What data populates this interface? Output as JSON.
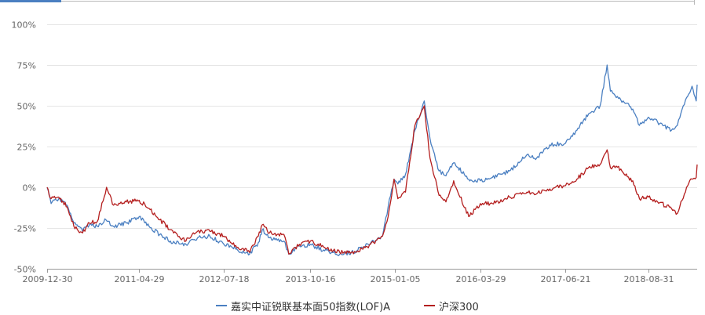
{
  "colors": {
    "fund": "#4a7fc1",
    "index": "#b41e1e",
    "grid": "#e6e6e6",
    "axis": "#999999"
  },
  "chart_data": {
    "type": "line",
    "ylim": [
      -50,
      100
    ],
    "yticks": [
      -50,
      -25,
      0,
      25,
      50,
      75,
      100
    ],
    "ytick_labels": [
      "-50%",
      "-25%",
      "0%",
      "25%",
      "50%",
      "75%",
      "100%"
    ],
    "xlim": [
      "2009-12-30",
      "2019-05-15"
    ],
    "xticks": [
      "2009-12-30",
      "2011-04-29",
      "2012-07-18",
      "2013-10-16",
      "2015-01-05",
      "2016-03-29",
      "2017-06-21",
      "2018-08-31"
    ],
    "xtick_labels": [
      "2009-12-30",
      "2011-04-29",
      "2012-07-18",
      "2013-10-16",
      "2015-01-05",
      "2016-03-29",
      "2017-06-21",
      "2018-08-31"
    ],
    "legend_position": "bottom-center",
    "grid": "horizontal",
    "series": [
      {
        "name": "嘉实中证锐联基本面50指数(LOF)A",
        "points": [
          [
            "2009-12-30",
            0
          ],
          [
            "2010-01-20",
            -10
          ],
          [
            "2010-03-01",
            -7
          ],
          [
            "2010-04-15",
            -11
          ],
          [
            "2010-05-20",
            -22
          ],
          [
            "2010-07-05",
            -27
          ],
          [
            "2010-08-10",
            -23
          ],
          [
            "2010-09-20",
            -24
          ],
          [
            "2010-11-05",
            -20
          ],
          [
            "2010-12-15",
            -24
          ],
          [
            "2011-02-20",
            -22
          ],
          [
            "2011-04-29",
            -18
          ],
          [
            "2011-06-20",
            -24
          ],
          [
            "2011-08-15",
            -29
          ],
          [
            "2011-10-10",
            -33
          ],
          [
            "2011-12-31",
            -35
          ],
          [
            "2012-03-01",
            -31
          ],
          [
            "2012-05-05",
            -30
          ],
          [
            "2012-07-18",
            -35
          ],
          [
            "2012-09-01",
            -37
          ],
          [
            "2012-11-30",
            -41
          ],
          [
            "2013-01-15",
            -34
          ],
          [
            "2013-02-05",
            -26
          ],
          [
            "2013-03-15",
            -31
          ],
          [
            "2013-05-30",
            -33
          ],
          [
            "2013-06-25",
            -41
          ],
          [
            "2013-08-20",
            -36
          ],
          [
            "2013-10-16",
            -35
          ],
          [
            "2013-12-31",
            -39
          ],
          [
            "2014-03-20",
            -41
          ],
          [
            "2014-05-20",
            -40
          ],
          [
            "2014-07-20",
            -37
          ],
          [
            "2014-09-15",
            -33
          ],
          [
            "2014-10-31",
            -30
          ],
          [
            "2014-11-30",
            -12
          ],
          [
            "2014-12-31",
            5
          ],
          [
            "2015-01-20",
            2
          ],
          [
            "2015-03-01",
            8
          ],
          [
            "2015-04-20",
            35
          ],
          [
            "2015-06-08",
            53
          ],
          [
            "2015-07-08",
            30
          ],
          [
            "2015-08-25",
            10
          ],
          [
            "2015-09-30",
            7
          ],
          [
            "2015-11-10",
            15
          ],
          [
            "2016-01-28",
            5
          ],
          [
            "2016-03-29",
            4
          ],
          [
            "2016-06-01",
            6
          ],
          [
            "2016-08-30",
            10
          ],
          [
            "2016-11-30",
            20
          ],
          [
            "2017-01-20",
            18
          ],
          [
            "2017-03-30",
            26
          ],
          [
            "2017-06-21",
            27
          ],
          [
            "2017-08-20",
            35
          ],
          [
            "2017-10-20",
            45
          ],
          [
            "2017-12-20",
            50
          ],
          [
            "2018-01-26",
            75
          ],
          [
            "2018-02-12",
            59
          ],
          [
            "2018-03-15",
            55
          ],
          [
            "2018-04-20",
            53
          ],
          [
            "2018-06-10",
            48
          ],
          [
            "2018-07-15",
            38
          ],
          [
            "2018-08-31",
            43
          ],
          [
            "2018-10-19",
            40
          ],
          [
            "2018-12-31",
            35
          ],
          [
            "2019-01-31",
            38
          ],
          [
            "2019-02-25",
            48
          ],
          [
            "2019-03-20",
            55
          ],
          [
            "2019-04-18",
            62
          ],
          [
            "2019-05-10",
            53
          ],
          [
            "2019-05-15",
            63
          ]
        ]
      },
      {
        "name": "沪深300",
        "points": [
          [
            "2009-12-30",
            0
          ],
          [
            "2010-01-20",
            -7
          ],
          [
            "2010-03-01",
            -6
          ],
          [
            "2010-04-15",
            -12
          ],
          [
            "2010-05-20",
            -24
          ],
          [
            "2010-07-05",
            -28
          ],
          [
            "2010-08-10",
            -22
          ],
          [
            "2010-09-20",
            -21
          ],
          [
            "2010-11-08",
            0
          ],
          [
            "2010-12-15",
            -11
          ],
          [
            "2011-02-20",
            -9
          ],
          [
            "2011-04-29",
            -8
          ],
          [
            "2011-06-20",
            -13
          ],
          [
            "2011-08-15",
            -20
          ],
          [
            "2011-10-10",
            -26
          ],
          [
            "2011-12-31",
            -33
          ],
          [
            "2012-03-01",
            -27
          ],
          [
            "2012-05-05",
            -27
          ],
          [
            "2012-07-18",
            -30
          ],
          [
            "2012-09-01",
            -35
          ],
          [
            "2012-11-30",
            -40
          ],
          [
            "2013-01-15",
            -30
          ],
          [
            "2013-02-05",
            -23
          ],
          [
            "2013-03-15",
            -28
          ],
          [
            "2013-05-30",
            -29
          ],
          [
            "2013-06-25",
            -41
          ],
          [
            "2013-08-20",
            -35
          ],
          [
            "2013-10-16",
            -33
          ],
          [
            "2013-12-31",
            -37
          ],
          [
            "2014-03-20",
            -40
          ],
          [
            "2014-05-20",
            -40
          ],
          [
            "2014-07-20",
            -38
          ],
          [
            "2014-09-15",
            -34
          ],
          [
            "2014-10-31",
            -30
          ],
          [
            "2014-11-30",
            -18
          ],
          [
            "2014-12-31",
            5
          ],
          [
            "2015-01-20",
            -7
          ],
          [
            "2015-03-01",
            -3
          ],
          [
            "2015-04-20",
            38
          ],
          [
            "2015-06-08",
            50
          ],
          [
            "2015-07-08",
            18
          ],
          [
            "2015-08-25",
            -5
          ],
          [
            "2015-09-30",
            -9
          ],
          [
            "2015-11-10",
            4
          ],
          [
            "2016-01-28",
            -18
          ],
          [
            "2016-03-29",
            -10
          ],
          [
            "2016-06-01",
            -10
          ],
          [
            "2016-08-30",
            -6
          ],
          [
            "2016-11-30",
            -3
          ],
          [
            "2017-01-20",
            -4
          ],
          [
            "2017-03-30",
            -1
          ],
          [
            "2017-06-21",
            1
          ],
          [
            "2017-08-20",
            5
          ],
          [
            "2017-10-20",
            12
          ],
          [
            "2017-12-20",
            14
          ],
          [
            "2018-01-26",
            23
          ],
          [
            "2018-02-12",
            12
          ],
          [
            "2018-03-15",
            13
          ],
          [
            "2018-04-20",
            9
          ],
          [
            "2018-06-10",
            4
          ],
          [
            "2018-07-15",
            -7
          ],
          [
            "2018-08-31",
            -6
          ],
          [
            "2018-10-19",
            -9
          ],
          [
            "2018-12-31",
            -13
          ],
          [
            "2019-01-31",
            -16
          ],
          [
            "2019-02-25",
            -8
          ],
          [
            "2019-03-20",
            0
          ],
          [
            "2019-04-18",
            5
          ],
          [
            "2019-05-10",
            6
          ],
          [
            "2019-05-15",
            14
          ]
        ]
      }
    ]
  }
}
